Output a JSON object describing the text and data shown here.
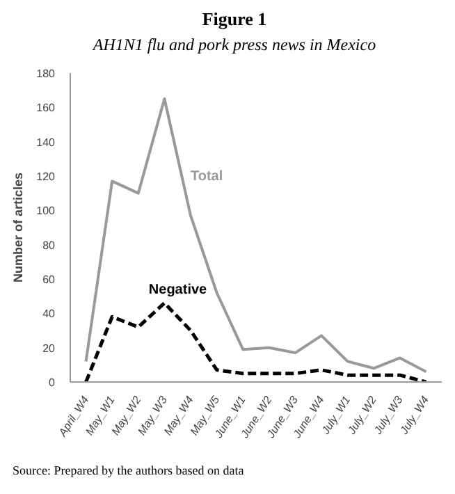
{
  "chart_data": {
    "type": "line",
    "title": "Figure 1",
    "subtitle": "AH1N1 flu and pork press news in Mexico",
    "ylabel": "Number of articles",
    "categories": [
      "April_W4",
      "May_W1",
      "May_W2",
      "May_W3",
      "May_W4",
      "May_W5",
      "June_W1",
      "June_W2",
      "June_W3",
      "June_W4",
      "July_W1",
      "July_W2",
      "July_W3",
      "July_W4"
    ],
    "series": [
      {
        "name": "Total",
        "color": "#999999",
        "line_style": "solid",
        "values": [
          12,
          117,
          110,
          165,
          97,
          52,
          19,
          20,
          17,
          27,
          12,
          8,
          14,
          6
        ]
      },
      {
        "name": "Negative",
        "color": "#000000",
        "line_style": "dashed",
        "values": [
          0,
          38,
          32,
          46,
          30,
          7,
          5,
          5,
          5,
          7,
          4,
          4,
          4,
          0
        ]
      }
    ],
    "ylim": [
      0,
      180
    ],
    "yticks": [
      0,
      20,
      40,
      60,
      80,
      100,
      120,
      140,
      160,
      180
    ],
    "grid": false,
    "marker": "none",
    "annotations": [
      "Source: Prepared by the authors based on data"
    ]
  }
}
